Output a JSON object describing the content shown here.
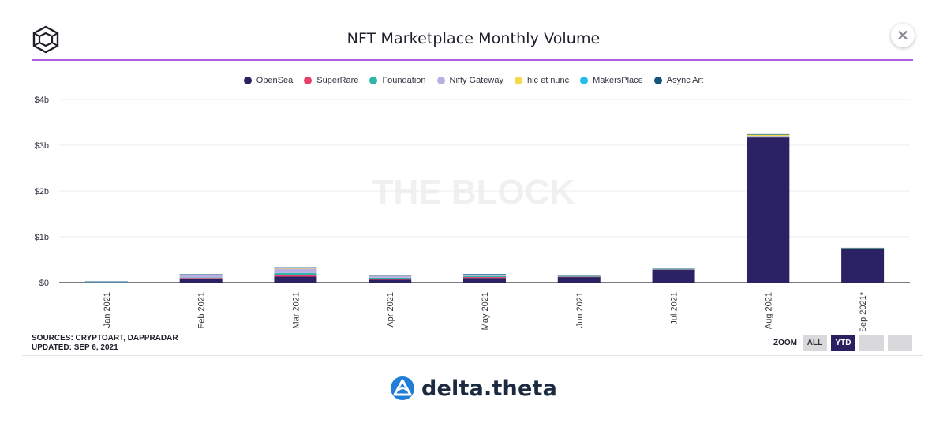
{
  "chart_data": {
    "type": "bar",
    "stacked": true,
    "title": "NFT Marketplace Monthly Volume",
    "categories": [
      "Jan 2021",
      "Feb 2021",
      "Mar 2021",
      "Apr 2021",
      "May 2021",
      "Jun 2021",
      "Jul 2021",
      "Aug 2021",
      "Sep 2021*"
    ],
    "series": [
      {
        "name": "OpenSea",
        "color": "#2b2263",
        "values": [
          0.008,
          0.08,
          0.13,
          0.06,
          0.1,
          0.12,
          0.28,
          3.17,
          0.74
        ]
      },
      {
        "name": "SuperRare",
        "color": "#e83e6b",
        "values": [
          0.004,
          0.02,
          0.03,
          0.015,
          0.02,
          0.008,
          0.005,
          0.015,
          0.004
        ]
      },
      {
        "name": "Foundation",
        "color": "#2fb5aa",
        "values": [
          0.002,
          0.01,
          0.05,
          0.03,
          0.02,
          0.006,
          0.005,
          0.01,
          0.004
        ]
      },
      {
        "name": "Nifty Gateway",
        "color": "#b9afe3",
        "values": [
          0.008,
          0.06,
          0.1,
          0.05,
          0.02,
          0.005,
          0.004,
          0.01,
          0.004
        ]
      },
      {
        "name": "hic et nunc",
        "color": "#f5d94a",
        "values": [
          0,
          0,
          0.002,
          0.002,
          0.004,
          0.004,
          0.003,
          0.025,
          0.003
        ]
      },
      {
        "name": "MakersPlace",
        "color": "#20bde8",
        "values": [
          0.002,
          0.01,
          0.02,
          0.005,
          0.02,
          0.003,
          0.003,
          0.01,
          0.003
        ]
      },
      {
        "name": "Async Art",
        "color": "#14557a",
        "values": [
          0.001,
          0.002,
          0.002,
          0.001,
          0.001,
          0.001,
          0.001,
          0.003,
          0.002
        ]
      }
    ],
    "ylim": [
      0,
      4
    ],
    "yticks": [
      "$0",
      "$1b",
      "$2b",
      "$3b",
      "$4b"
    ],
    "grid": true,
    "legend_position": "top-center",
    "watermark": "THE BLOCK"
  },
  "header": {
    "title": "NFT Marketplace Monthly Volume",
    "close_label": "✕"
  },
  "footer": {
    "sources_line1": "SOURCES: CRYPTOART, DAPPRADAR",
    "sources_line2": "UPDATED: SEP 6, 2021"
  },
  "zoom": {
    "label": "ZOOM",
    "options": [
      "ALL",
      "YTD",
      "",
      ""
    ],
    "selected": "YTD"
  },
  "brand": {
    "name": "delta.theta",
    "icon": "delta-theta-logo-icon",
    "color": "#1f7fd6"
  },
  "icons": {
    "site_logo": "cube-logo-icon",
    "close": "close-icon"
  }
}
